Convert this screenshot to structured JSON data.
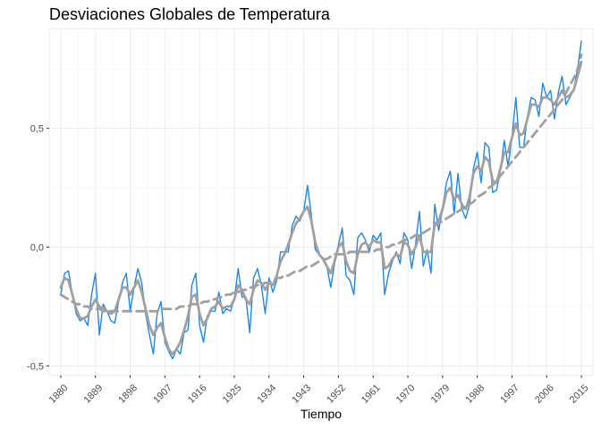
{
  "chart_data": {
    "type": "line",
    "title": "Desviaciones Globales de Temperatura",
    "xlabel": "Tiempo",
    "ylabel": "",
    "xlim": [
      1877,
      2018
    ],
    "ylim": [
      -0.54,
      0.92
    ],
    "x_ticks": [
      1880,
      1889,
      1898,
      1907,
      1916,
      1925,
      1934,
      1943,
      1952,
      1961,
      1970,
      1979,
      1988,
      1997,
      2006,
      2015
    ],
    "y_ticks": [
      -0.5,
      0.0,
      0.5
    ],
    "y_tick_labels": [
      "-0,5",
      "0,0",
      "0,5"
    ],
    "grid": true,
    "legend": "none",
    "colors": {
      "raw": "#1E88E5",
      "smooth": "#A0A0A0",
      "trend": "#A0A0A0"
    },
    "x": [
      1880,
      1881,
      1882,
      1883,
      1884,
      1885,
      1886,
      1887,
      1888,
      1889,
      1890,
      1891,
      1892,
      1893,
      1894,
      1895,
      1896,
      1897,
      1898,
      1899,
      1900,
      1901,
      1902,
      1903,
      1904,
      1905,
      1906,
      1907,
      1908,
      1909,
      1910,
      1911,
      1912,
      1913,
      1914,
      1915,
      1916,
      1917,
      1918,
      1919,
      1920,
      1921,
      1922,
      1923,
      1924,
      1925,
      1926,
      1927,
      1928,
      1929,
      1930,
      1931,
      1932,
      1933,
      1934,
      1935,
      1936,
      1937,
      1938,
      1939,
      1940,
      1941,
      1942,
      1943,
      1944,
      1945,
      1946,
      1947,
      1948,
      1949,
      1950,
      1951,
      1952,
      1953,
      1954,
      1955,
      1956,
      1957,
      1958,
      1959,
      1960,
      1961,
      1962,
      1963,
      1964,
      1965,
      1966,
      1967,
      1968,
      1969,
      1970,
      1971,
      1972,
      1973,
      1974,
      1975,
      1976,
      1977,
      1978,
      1979,
      1980,
      1981,
      1982,
      1983,
      1984,
      1985,
      1986,
      1987,
      1988,
      1989,
      1990,
      1991,
      1992,
      1993,
      1994,
      1995,
      1996,
      1997,
      1998,
      1999,
      2000,
      2001,
      2002,
      2003,
      2004,
      2005,
      2006,
      2007,
      2008,
      2009,
      2010,
      2011,
      2012,
      2013,
      2014,
      2015
    ],
    "series": [
      {
        "key": "raw",
        "values": [
          -0.2,
          -0.11,
          -0.1,
          -0.2,
          -0.28,
          -0.31,
          -0.3,
          -0.33,
          -0.2,
          -0.11,
          -0.37,
          -0.24,
          -0.27,
          -0.31,
          -0.32,
          -0.23,
          -0.15,
          -0.11,
          -0.27,
          -0.17,
          -0.09,
          -0.15,
          -0.28,
          -0.37,
          -0.45,
          -0.28,
          -0.23,
          -0.4,
          -0.44,
          -0.47,
          -0.43,
          -0.45,
          -0.36,
          -0.35,
          -0.16,
          -0.11,
          -0.33,
          -0.4,
          -0.29,
          -0.27,
          -0.27,
          -0.19,
          -0.28,
          -0.26,
          -0.27,
          -0.22,
          -0.09,
          -0.21,
          -0.21,
          -0.36,
          -0.13,
          -0.09,
          -0.16,
          -0.28,
          -0.13,
          -0.19,
          -0.14,
          -0.02,
          -0.02,
          -0.02,
          0.09,
          0.13,
          0.11,
          0.15,
          0.26,
          0.13,
          -0.01,
          -0.03,
          -0.05,
          -0.08,
          -0.17,
          -0.07,
          0.01,
          0.08,
          -0.12,
          -0.14,
          -0.2,
          0.04,
          0.06,
          0.03,
          -0.02,
          0.05,
          0.03,
          0.06,
          -0.2,
          -0.11,
          -0.06,
          -0.02,
          -0.07,
          0.06,
          0.03,
          -0.09,
          0.01,
          0.15,
          -0.08,
          -0.01,
          -0.11,
          0.18,
          0.07,
          0.16,
          0.27,
          0.32,
          0.14,
          0.31,
          0.16,
          0.12,
          0.18,
          0.33,
          0.4,
          0.27,
          0.44,
          0.42,
          0.23,
          0.24,
          0.32,
          0.45,
          0.34,
          0.46,
          0.63,
          0.42,
          0.42,
          0.55,
          0.63,
          0.62,
          0.55,
          0.69,
          0.63,
          0.66,
          0.54,
          0.65,
          0.72,
          0.6,
          0.63,
          0.66,
          0.75,
          0.87
        ]
      },
      {
        "key": "smooth",
        "values": [
          -0.17,
          -0.13,
          -0.14,
          -0.2,
          -0.26,
          -0.3,
          -0.3,
          -0.29,
          -0.25,
          -0.22,
          -0.25,
          -0.26,
          -0.27,
          -0.28,
          -0.27,
          -0.22,
          -0.17,
          -0.17,
          -0.2,
          -0.17,
          -0.14,
          -0.19,
          -0.26,
          -0.33,
          -0.37,
          -0.34,
          -0.32,
          -0.38,
          -0.43,
          -0.45,
          -0.43,
          -0.4,
          -0.35,
          -0.29,
          -0.21,
          -0.2,
          -0.28,
          -0.33,
          -0.3,
          -0.26,
          -0.25,
          -0.23,
          -0.26,
          -0.25,
          -0.25,
          -0.22,
          -0.16,
          -0.18,
          -0.22,
          -0.24,
          -0.18,
          -0.14,
          -0.15,
          -0.18,
          -0.15,
          -0.16,
          -0.12,
          -0.06,
          -0.03,
          0.01,
          0.06,
          0.1,
          0.12,
          0.15,
          0.17,
          0.11,
          0.02,
          -0.03,
          -0.05,
          -0.08,
          -0.11,
          -0.06,
          0.0,
          0.02,
          -0.06,
          -0.1,
          -0.11,
          -0.03,
          0.01,
          0.02,
          0.0,
          0.03,
          0.02,
          0.02,
          -0.09,
          -0.08,
          -0.05,
          -0.03,
          -0.04,
          0.02,
          0.01,
          -0.03,
          0.0,
          0.05,
          -0.02,
          -0.02,
          -0.02,
          0.1,
          0.11,
          0.16,
          0.23,
          0.25,
          0.2,
          0.22,
          0.18,
          0.16,
          0.21,
          0.31,
          0.34,
          0.32,
          0.38,
          0.36,
          0.28,
          0.27,
          0.33,
          0.4,
          0.4,
          0.46,
          0.52,
          0.47,
          0.48,
          0.54,
          0.6,
          0.6,
          0.59,
          0.63,
          0.63,
          0.62,
          0.6,
          0.63,
          0.66,
          0.63,
          0.64,
          0.66,
          0.72,
          0.78
        ]
      },
      {
        "key": "trend",
        "values": [
          -0.2,
          -0.21,
          -0.22,
          -0.23,
          -0.24,
          -0.24,
          -0.25,
          -0.25,
          -0.26,
          -0.26,
          -0.26,
          -0.27,
          -0.27,
          -0.27,
          -0.27,
          -0.27,
          -0.27,
          -0.27,
          -0.27,
          -0.27,
          -0.27,
          -0.27,
          -0.27,
          -0.27,
          -0.27,
          -0.27,
          -0.26,
          -0.26,
          -0.26,
          -0.26,
          -0.26,
          -0.25,
          -0.25,
          -0.25,
          -0.24,
          -0.24,
          -0.24,
          -0.23,
          -0.23,
          -0.22,
          -0.22,
          -0.21,
          -0.21,
          -0.2,
          -0.2,
          -0.19,
          -0.19,
          -0.18,
          -0.18,
          -0.17,
          -0.17,
          -0.16,
          -0.16,
          -0.15,
          -0.15,
          -0.14,
          -0.13,
          -0.13,
          -0.12,
          -0.12,
          -0.11,
          -0.1,
          -0.1,
          -0.09,
          -0.08,
          -0.08,
          -0.07,
          -0.06,
          -0.05,
          -0.05,
          -0.04,
          -0.03,
          -0.03,
          -0.03,
          -0.03,
          -0.02,
          -0.02,
          -0.02,
          -0.02,
          -0.02,
          -0.02,
          -0.02,
          -0.01,
          -0.01,
          0.0,
          0.0,
          0.01,
          0.01,
          0.02,
          0.03,
          0.03,
          0.04,
          0.05,
          0.05,
          0.06,
          0.07,
          0.08,
          0.09,
          0.1,
          0.11,
          0.12,
          0.13,
          0.14,
          0.15,
          0.16,
          0.17,
          0.18,
          0.19,
          0.21,
          0.22,
          0.23,
          0.25,
          0.26,
          0.28,
          0.3,
          0.32,
          0.34,
          0.36,
          0.38,
          0.4,
          0.42,
          0.44,
          0.46,
          0.48,
          0.5,
          0.52,
          0.54,
          0.56,
          0.58,
          0.6,
          0.62,
          0.65,
          0.68,
          0.71,
          0.75,
          0.81
        ]
      }
    ]
  }
}
